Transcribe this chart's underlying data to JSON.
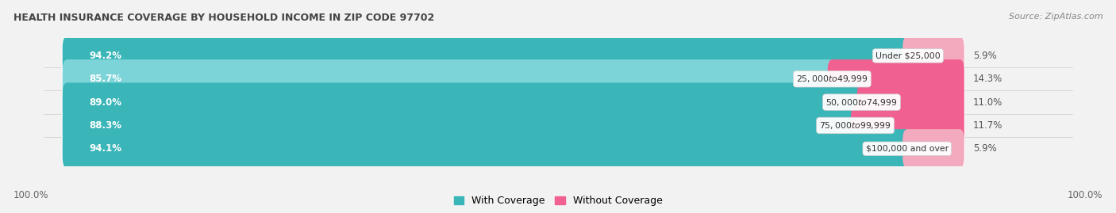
{
  "title": "HEALTH INSURANCE COVERAGE BY HOUSEHOLD INCOME IN ZIP CODE 97702",
  "source": "Source: ZipAtlas.com",
  "categories": [
    "Under $25,000",
    "$25,000 to $49,999",
    "$50,000 to $74,999",
    "$75,000 to $99,999",
    "$100,000 and over"
  ],
  "with_coverage": [
    94.2,
    85.7,
    89.0,
    88.3,
    94.1
  ],
  "without_coverage": [
    5.9,
    14.3,
    11.0,
    11.7,
    5.9
  ],
  "color_with": [
    "#3ab5b8",
    "#7dd4d8",
    "#3ab5b8",
    "#3ab5b8",
    "#3ab5b8"
  ],
  "color_without": [
    "#f4aabe",
    "#f06090",
    "#f06090",
    "#f06090",
    "#f4aabe"
  ],
  "bg_color": "#f2f2f2",
  "bar_bg_color": "#e4e4e4",
  "legend_with": "With Coverage",
  "legend_without": "Without Coverage",
  "left_label": "100.0%",
  "right_label": "100.0%",
  "title_fontsize": 9,
  "source_fontsize": 8,
  "bar_height": 0.68,
  "total_width": 100.0,
  "xlim_left": -110,
  "xlim_right": 110
}
